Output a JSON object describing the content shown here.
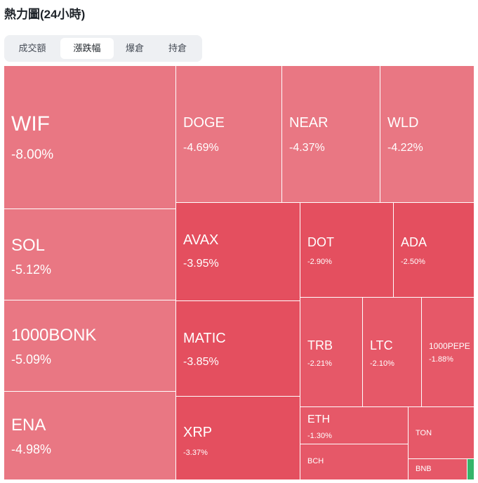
{
  "header": {
    "title": "熱力圖(24小時)"
  },
  "tabs": [
    {
      "label": "成交額"
    },
    {
      "label": "漲跌幅",
      "active": true
    },
    {
      "label": "爆倉"
    },
    {
      "label": "持倉"
    }
  ],
  "colors": {
    "light_red": "#e97783",
    "mid_red": "#e65868",
    "strong_red": "#e44f5f",
    "green": "#35b56a"
  },
  "tiles": [
    {
      "symbol": "WIF",
      "change": "-8.00%"
    },
    {
      "symbol": "SOL",
      "change": "-5.12%"
    },
    {
      "symbol": "1000BONK",
      "change": "-5.09%"
    },
    {
      "symbol": "ENA",
      "change": "-4.98%"
    },
    {
      "symbol": "DOGE",
      "change": "-4.69%"
    },
    {
      "symbol": "NEAR",
      "change": "-4.37%"
    },
    {
      "symbol": "WLD",
      "change": "-4.22%"
    },
    {
      "symbol": "AVAX",
      "change": "-3.95%"
    },
    {
      "symbol": "MATIC",
      "change": "-3.85%"
    },
    {
      "symbol": "XRP",
      "change": "-3.37%"
    },
    {
      "symbol": "DOT",
      "change": "-2.90%"
    },
    {
      "symbol": "ADA",
      "change": "-2.50%"
    },
    {
      "symbol": "TRB",
      "change": "-2.21%"
    },
    {
      "symbol": "LTC",
      "change": "-2.10%"
    },
    {
      "symbol": "1000PEPE",
      "change": "-1.88%"
    },
    {
      "symbol": "ETH",
      "change": "-1.30%"
    },
    {
      "symbol": "BCH"
    },
    {
      "symbol": "TON"
    },
    {
      "symbol": "BNB"
    }
  ]
}
